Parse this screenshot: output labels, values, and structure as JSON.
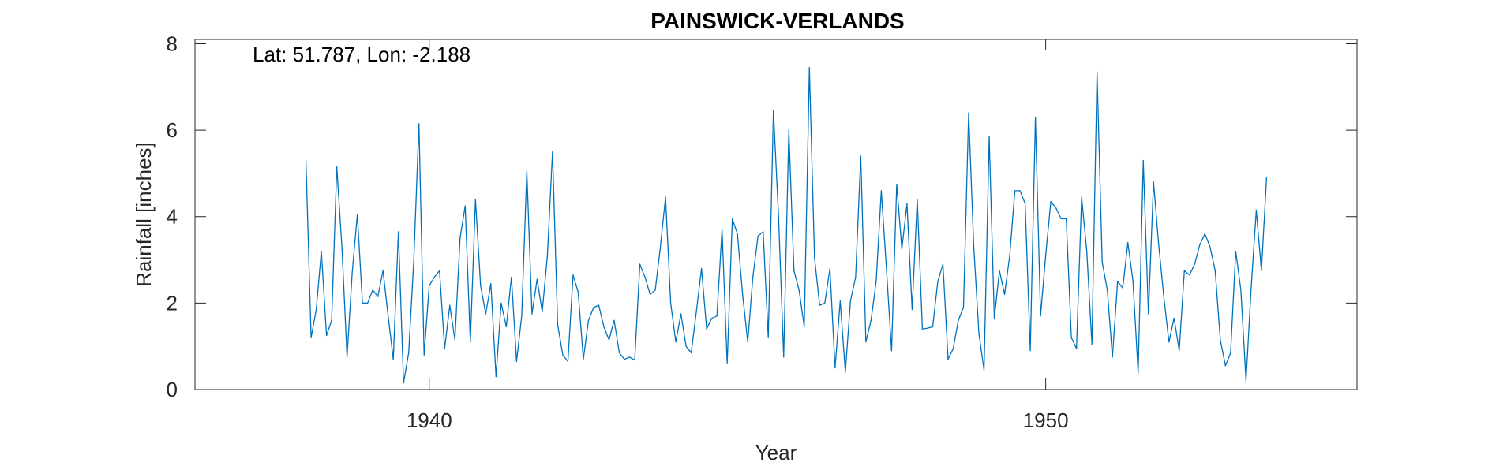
{
  "chart_data": {
    "type": "line",
    "title": "PAINSWICK-VERLANDS",
    "xlabel": "Year",
    "ylabel": "Rainfall [inches]",
    "annotation": "Lat: 51.787, Lon: -2.188",
    "xlim": [
      1936.2,
      1955.05
    ],
    "ylim": [
      0,
      8.1
    ],
    "x_ticks": [
      1940,
      1950
    ],
    "y_ticks": [
      0,
      2,
      4,
      6,
      8
    ],
    "grid": false,
    "box": true,
    "series": [
      {
        "color": "#0072BD",
        "x_start": 1938.0,
        "x_step": 0.08333,
        "values": [
          5.3,
          1.2,
          1.85,
          3.2,
          1.25,
          1.6,
          5.15,
          3.3,
          0.75,
          2.7,
          4.05,
          2.0,
          2.0,
          2.3,
          2.15,
          2.75,
          1.7,
          0.7,
          3.65,
          0.15,
          0.85,
          3.0,
          6.15,
          0.8,
          2.4,
          2.6,
          2.75,
          0.95,
          1.95,
          1.15,
          3.5,
          4.25,
          1.1,
          4.4,
          2.4,
          1.75,
          2.45,
          0.3,
          2.0,
          1.45,
          2.6,
          0.65,
          1.7,
          5.05,
          1.75,
          2.55,
          1.8,
          3.1,
          5.5,
          1.5,
          0.8,
          0.65,
          2.65,
          2.25,
          0.7,
          1.6,
          1.9,
          1.95,
          1.45,
          1.15,
          1.6,
          0.85,
          0.7,
          0.75,
          0.68,
          2.9,
          2.6,
          2.2,
          2.3,
          3.3,
          4.45,
          2.0,
          1.1,
          1.75,
          1.0,
          0.85,
          1.8,
          2.8,
          1.4,
          1.65,
          1.7,
          3.7,
          0.6,
          3.95,
          3.6,
          2.2,
          1.1,
          2.6,
          3.55,
          3.65,
          1.2,
          6.45,
          4.0,
          0.75,
          6.0,
          2.75,
          2.3,
          1.45,
          7.45,
          3.05,
          1.95,
          2.0,
          2.8,
          0.5,
          2.05,
          0.4,
          2.05,
          2.6,
          5.4,
          1.1,
          1.6,
          2.5,
          4.6,
          2.8,
          0.9,
          4.75,
          3.25,
          4.3,
          1.85,
          4.4,
          1.4,
          1.42,
          1.45,
          2.5,
          2.9,
          0.7,
          0.95,
          1.6,
          1.9,
          6.4,
          3.3,
          1.3,
          0.45,
          5.85,
          1.65,
          2.75,
          2.2,
          3.1,
          4.6,
          4.6,
          4.3,
          0.9,
          6.3,
          1.7,
          3.1,
          4.35,
          4.2,
          3.95,
          3.95,
          1.2,
          0.95,
          4.45,
          3.2,
          1.05,
          7.35,
          2.95,
          2.3,
          0.75,
          2.5,
          2.35,
          3.4,
          2.5,
          0.38,
          5.3,
          1.75,
          4.8,
          3.35,
          2.15,
          1.1,
          1.65,
          0.9,
          2.75,
          2.65,
          2.9,
          3.35,
          3.6,
          3.3,
          2.75,
          1.15,
          0.55,
          0.85,
          3.2,
          2.3,
          0.2,
          2.35,
          4.15,
          2.75,
          4.9
        ]
      }
    ]
  }
}
